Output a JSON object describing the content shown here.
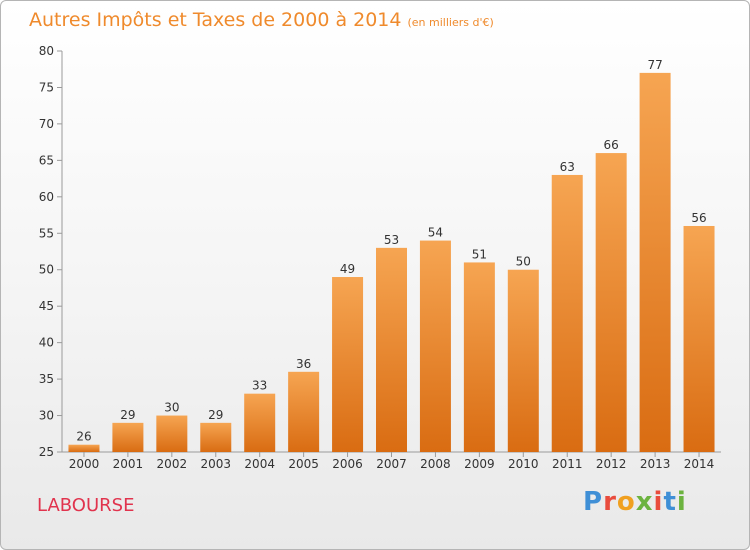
{
  "header": {
    "title": "Autres Impôts et Taxes de 2000 à 2014",
    "unit": "(en milliers d'€)"
  },
  "footer": {
    "place": "LABOURSE",
    "brand_letters": [
      "P",
      "r",
      "o",
      "x",
      "i",
      "t",
      "i"
    ]
  },
  "colors": {
    "title": "#ef8a2c",
    "place": "#e1334d",
    "bar_top": "#f6a552",
    "bar_bottom": "#d96c12",
    "brand": [
      "#3f8fd6",
      "#e94c3d",
      "#f0a020",
      "#6cb33f",
      "#e94c3d",
      "#3f8fd6",
      "#6cb33f"
    ]
  },
  "chart_data": {
    "type": "bar",
    "title": "Autres Impôts et Taxes de 2000 à 2014",
    "categories": [
      "2000",
      "2001",
      "2002",
      "2003",
      "2004",
      "2005",
      "2006",
      "2007",
      "2008",
      "2009",
      "2010",
      "2011",
      "2012",
      "2013",
      "2014"
    ],
    "values": [
      26,
      29,
      30,
      29,
      33,
      36,
      49,
      53,
      54,
      51,
      50,
      63,
      66,
      77,
      56
    ],
    "ylim": [
      25,
      80
    ],
    "yticks": [
      25,
      30,
      35,
      40,
      45,
      50,
      55,
      60,
      65,
      70,
      75,
      80
    ],
    "grid": false,
    "data_labels": true
  }
}
